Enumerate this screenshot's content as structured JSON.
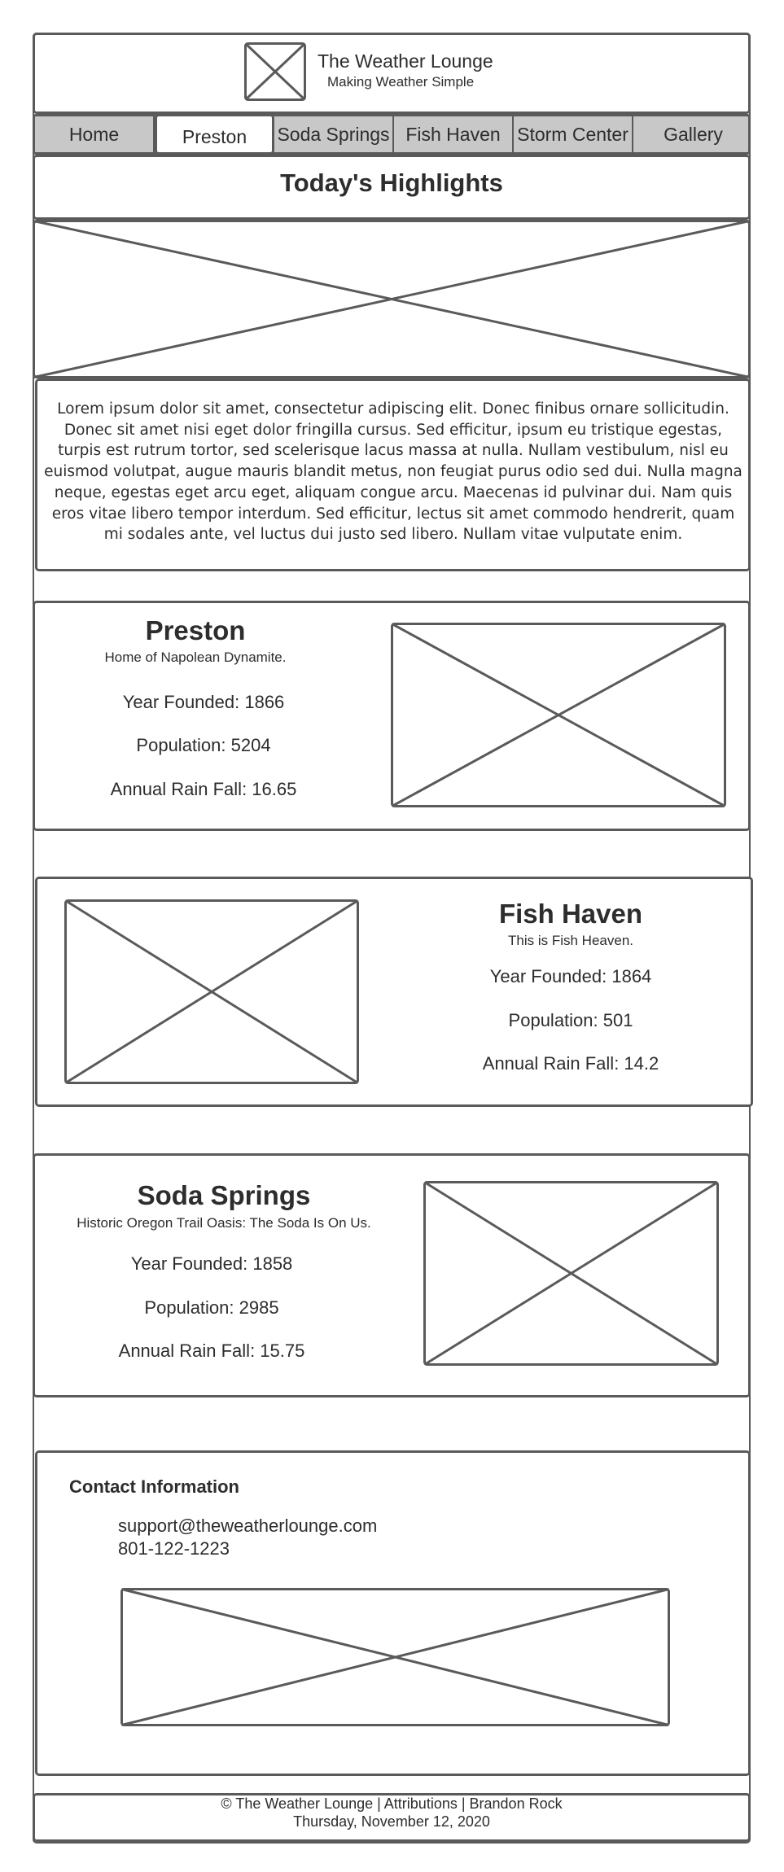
{
  "header": {
    "site_name": "The Weather Lounge",
    "tagline": "Making Weather Simple",
    "logo_icon": "image-placeholder-icon"
  },
  "nav": {
    "items": [
      {
        "label": "Home"
      },
      {
        "label": "Preston",
        "active": true
      },
      {
        "label": "Soda Springs"
      },
      {
        "label": "Fish Haven"
      },
      {
        "label": "Storm Center"
      },
      {
        "label": "Gallery"
      }
    ]
  },
  "highlights": {
    "title": "Today's Highlights",
    "text": "Lorem ipsum dolor sit amet, consectetur adipiscing elit. Donec finibus ornare sollicitudin. Donec sit amet nisi eget dolor fringilla cursus. Sed efficitur, ipsum eu tristique egestas, turpis est rutrum tortor, sed scelerisque lacus massa at nulla. Nullam vestibulum, nisl eu euismod volutpat, augue mauris blandit metus, non feugiat purus odio sed dui. Nulla magna neque, egestas eget arcu eget, aliquam congue arcu. Maecenas id pulvinar dui. Nam quis eros vitae libero tempor interdum. Sed efficitur, lectus sit amet commodo hendrerit, quam mi sodales ante, vel luctus dui justo sed libero. Nullam vitae vulputate enim."
  },
  "towns": [
    {
      "name": "Preston",
      "motto": "Home of Napolean Dynamite.",
      "year_founded": "Year Founded: 1866",
      "population": "Population: 5204",
      "rainfall": "Annual Rain Fall: 16.65"
    },
    {
      "name": "Fish Haven",
      "motto": "This is Fish Heaven.",
      "year_founded": "Year Founded: 1864",
      "population": "Population: 501",
      "rainfall": "Annual Rain Fall: 14.2"
    },
    {
      "name": "Soda Springs",
      "motto": "Historic Oregon Trail Oasis: The Soda Is On Us.",
      "year_founded": "Year Founded: 1858",
      "population": "Population: 2985",
      "rainfall": "Annual Rain Fall: 15.75"
    }
  ],
  "contact": {
    "heading": "Contact Information",
    "email": "support@theweatherlounge.com",
    "phone": "801-122-1223"
  },
  "footer": {
    "line1": "© The Weather Lounge | Attributions | Brandon Rock",
    "line2": "Thursday, November 12, 2020"
  },
  "colors": {
    "border": "#5a5a5a",
    "nav_background": "#c8c8c8",
    "text": "#2d2d2d"
  }
}
